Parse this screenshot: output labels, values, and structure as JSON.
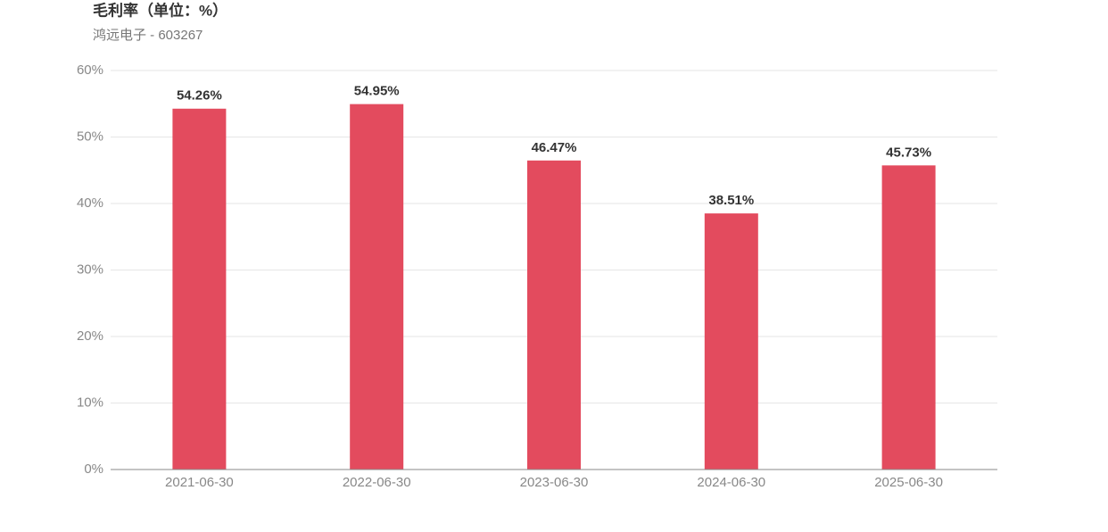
{
  "chart_data": {
    "type": "bar",
    "title": "毛利率（单位：%）",
    "subtitle": "鸿远电子 - 603267",
    "categories": [
      "2021-06-30",
      "2022-06-30",
      "2023-06-30",
      "2024-06-30",
      "2025-06-30"
    ],
    "values": [
      54.26,
      54.95,
      46.47,
      38.51,
      45.73
    ],
    "value_labels": [
      "54.26%",
      "54.95%",
      "46.47%",
      "38.51%",
      "45.73%"
    ],
    "color": "#e34b5e",
    "ylim": [
      0,
      60
    ],
    "yticks": [
      {
        "value": 0,
        "label": "0%"
      },
      {
        "value": 10,
        "label": "10%"
      },
      {
        "value": 20,
        "label": "20%"
      },
      {
        "value": 30,
        "label": "30%"
      },
      {
        "value": 40,
        "label": "40%"
      },
      {
        "value": 50,
        "label": "50%"
      },
      {
        "value": 60,
        "label": "60%"
      }
    ],
    "grid": true
  }
}
